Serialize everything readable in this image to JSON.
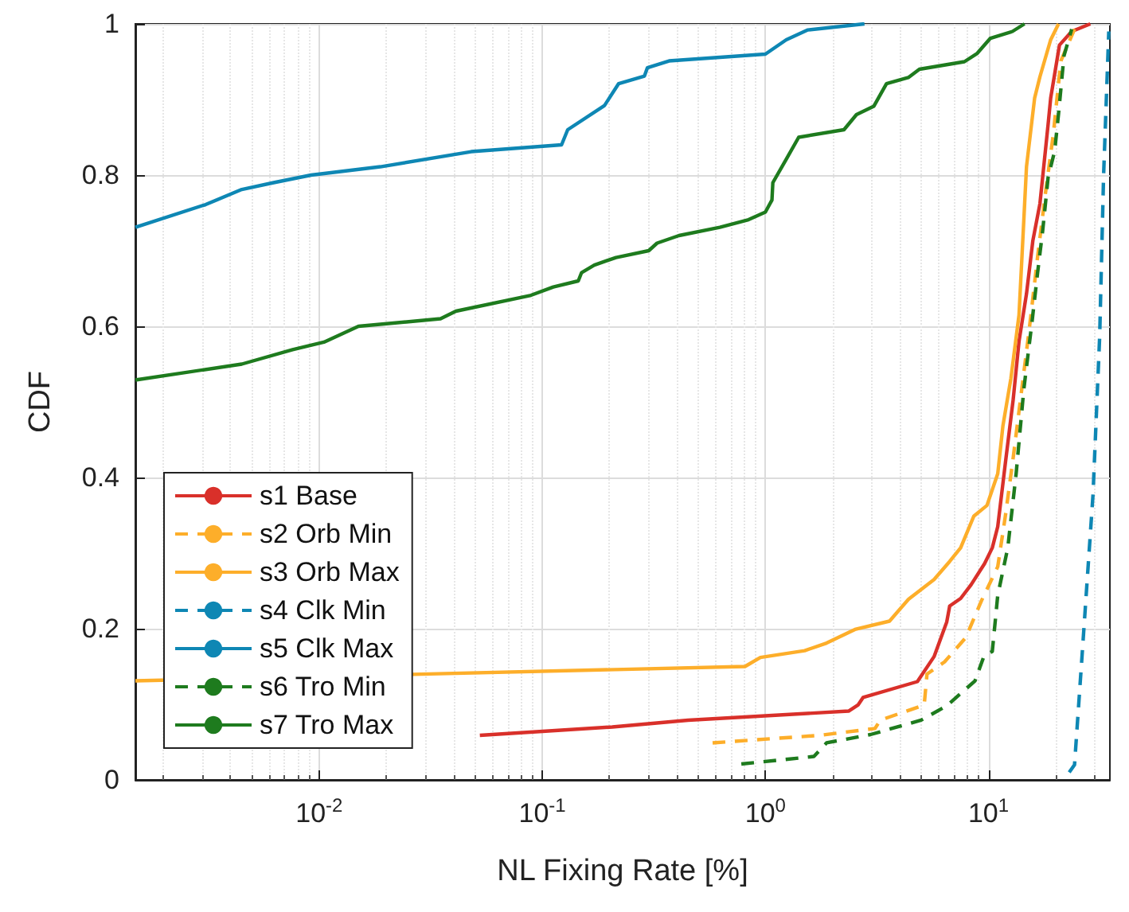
{
  "chart_data": {
    "type": "line",
    "xlabel": "NL Fixing Rate [%]",
    "ylabel": "CDF",
    "log": "x",
    "grid": true,
    "legend": "bottom left",
    "marker": "none",
    "xlim": [
      0.0015,
      35
    ],
    "xticks": [
      {
        "value": 0.01,
        "label": "10$^{-2}$"
      },
      {
        "value": 0.1,
        "label": "10$^{-1}$"
      },
      {
        "value": 1,
        "label": "10$^{0}$"
      },
      {
        "value": 10,
        "label": "10$^{1}$"
      }
    ],
    "ylim": [
      0,
      1
    ],
    "yticks": [
      0,
      0.2,
      0.4,
      0.6,
      0.8,
      1
    ],
    "series": [
      {
        "name": "s1 Base",
        "color": "#d9302a",
        "line_style": "solid",
        "x": [
          0.0525,
          0.206,
          0.45,
          2.36,
          2.6,
          2.74,
          4.8,
          5.7,
          6.5,
          6.7,
          7.5,
          8.35,
          9.6,
          10.4,
          11.0,
          11.9,
          12.9,
          13.7,
          14.8,
          15.8,
          17.0,
          18.5,
          19.0,
          20.8,
          23.6,
          28.6
        ],
        "values": [
          0.059,
          0.07,
          0.079,
          0.091,
          0.099,
          0.109,
          0.13,
          0.163,
          0.209,
          0.23,
          0.24,
          0.258,
          0.286,
          0.307,
          0.335,
          0.419,
          0.503,
          0.58,
          0.643,
          0.713,
          0.762,
          0.867,
          0.902,
          0.972,
          0.99,
          1.0
        ]
      },
      {
        "name": "s2 Orb Min",
        "color": "#fdae2a",
        "line_style": "dashed",
        "x": [
          0.58,
          1.76,
          3.1,
          3.27,
          4.1,
          5.15,
          5.3,
          6.35,
          7.9,
          9.3,
          11.0,
          11.9,
          12.9,
          14.0,
          15.2,
          16.6,
          18.0,
          19.5,
          21.1,
          24.3
        ],
        "values": [
          0.049,
          0.059,
          0.068,
          0.079,
          0.089,
          0.099,
          0.14,
          0.156,
          0.188,
          0.237,
          0.282,
          0.349,
          0.426,
          0.51,
          0.594,
          0.692,
          0.776,
          0.853,
          0.951,
          0.993
        ]
      },
      {
        "name": "s3 Orb Max",
        "color": "#fdae2a",
        "line_style": "solid",
        "x": [
          0.0015,
          0.81,
          0.95,
          1.5,
          1.88,
          2.52,
          3.6,
          4.38,
          5.7,
          6.7,
          7.5,
          8.6,
          9.84,
          11.0,
          11.6,
          12.6,
          13.7,
          14.4,
          14.8,
          16.1,
          17.0,
          19.0,
          20.6
        ],
        "values": [
          0.131,
          0.15,
          0.162,
          0.171,
          0.181,
          0.199,
          0.21,
          0.239,
          0.265,
          0.289,
          0.307,
          0.349,
          0.363,
          0.405,
          0.468,
          0.531,
          0.615,
          0.741,
          0.811,
          0.902,
          0.93,
          0.979,
          1.0
        ]
      },
      {
        "name": "s4 Clk Min",
        "color": "#0e87b4",
        "line_style": "dashed",
        "x": [
          23.0,
          24.3,
          26.3,
          29.4,
          31.5,
          32.8,
          34.6
        ],
        "values": [
          0.01,
          0.02,
          0.167,
          0.377,
          0.587,
          0.8,
          0.99
        ]
      },
      {
        "name": "s5 Clk Max",
        "color": "#0e87b4",
        "line_style": "solid",
        "x": [
          0.0015,
          0.0031,
          0.0045,
          0.00625,
          0.0092,
          0.0188,
          0.048,
          0.122,
          0.13,
          0.19,
          0.22,
          0.287,
          0.296,
          0.37,
          1.0,
          1.24,
          1.55,
          2.78
        ],
        "values": [
          0.731,
          0.761,
          0.781,
          0.79,
          0.8,
          0.811,
          0.831,
          0.84,
          0.86,
          0.892,
          0.921,
          0.931,
          0.942,
          0.951,
          0.96,
          0.979,
          0.992,
          1.0
        ]
      },
      {
        "name": "s6 Tro Min",
        "color": "#1e7b1e",
        "line_style": "dashed",
        "x": [
          0.78,
          1.65,
          1.88,
          2.96,
          4.99,
          6.5,
          8.7,
          9.55,
          10.4,
          11.0,
          12.2,
          13.3,
          14.4,
          15.7,
          16.6,
          17.5,
          18.5,
          19.8,
          20.6,
          21.8,
          23.6
        ],
        "values": [
          0.021,
          0.031,
          0.049,
          0.06,
          0.079,
          0.098,
          0.131,
          0.164,
          0.17,
          0.244,
          0.307,
          0.405,
          0.517,
          0.608,
          0.671,
          0.727,
          0.797,
          0.832,
          0.881,
          0.958,
          0.993
        ]
      },
      {
        "name": "s7 Tro Max",
        "color": "#1e7b1e",
        "line_style": "solid",
        "x": [
          0.0015,
          0.0045,
          0.0076,
          0.0105,
          0.015,
          0.035,
          0.041,
          0.089,
          0.112,
          0.145,
          0.15,
          0.171,
          0.214,
          0.3,
          0.327,
          0.41,
          0.625,
          0.84,
          1.0,
          1.07,
          1.08,
          1.24,
          1.41,
          2.25,
          2.56,
          3.06,
          3.49,
          4.37,
          4.9,
          7.8,
          8.9,
          10.2,
          12.8,
          14.5
        ],
        "values": [
          0.529,
          0.55,
          0.569,
          0.579,
          0.6,
          0.61,
          0.62,
          0.641,
          0.652,
          0.66,
          0.671,
          0.681,
          0.691,
          0.7,
          0.71,
          0.72,
          0.731,
          0.741,
          0.751,
          0.767,
          0.79,
          0.821,
          0.85,
          0.86,
          0.88,
          0.891,
          0.921,
          0.929,
          0.94,
          0.95,
          0.961,
          0.981,
          0.99,
          1.0
        ]
      }
    ]
  }
}
